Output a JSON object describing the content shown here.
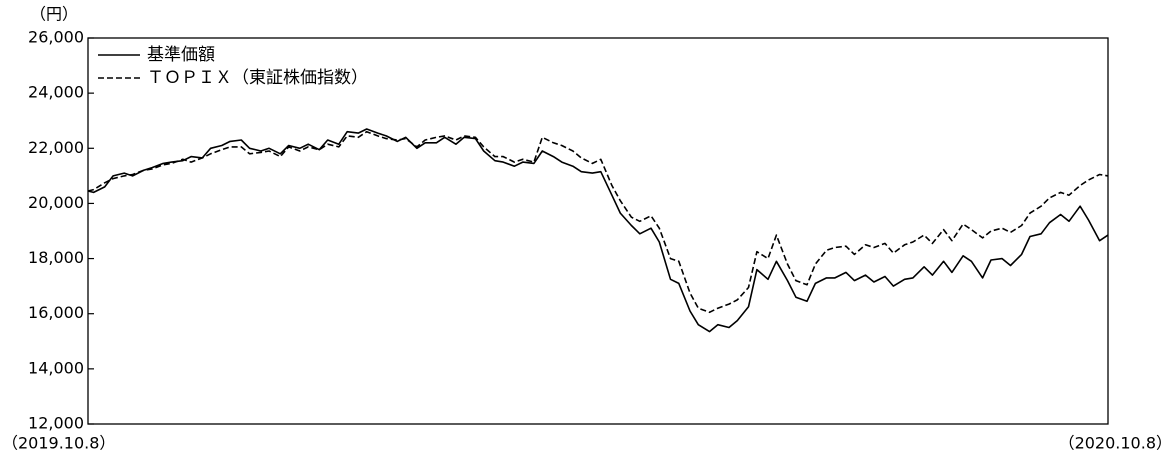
{
  "chart_data": {
    "type": "line",
    "y_unit": "（円）",
    "x_start_label": "（2019.10.8）",
    "x_end_label": "（2020.10.8）",
    "ylim": [
      12000,
      26000
    ],
    "y_ticks": [
      "26,000",
      "24,000",
      "22,000",
      "20,000",
      "18,000",
      "16,000",
      "14,000",
      "12,000"
    ],
    "y_tick_values": [
      26000,
      24000,
      22000,
      20000,
      18000,
      16000,
      14000,
      12000
    ],
    "grid": false,
    "legend_position": "top-left",
    "x_start": "2019-10-08",
    "x_end": "2020-10-08",
    "series": [
      {
        "name": "基準価額",
        "style": "solid",
        "color": "#000000",
        "points": [
          [
            "2019-10-08",
            20450
          ],
          [
            "2019-10-10",
            20400
          ],
          [
            "2019-10-14",
            20600
          ],
          [
            "2019-10-17",
            21000
          ],
          [
            "2019-10-21",
            21100
          ],
          [
            "2019-10-24",
            21000
          ],
          [
            "2019-10-28",
            21200
          ],
          [
            "2019-10-31",
            21300
          ],
          [
            "2019-11-04",
            21450
          ],
          [
            "2019-11-07",
            21500
          ],
          [
            "2019-11-11",
            21550
          ],
          [
            "2019-11-14",
            21700
          ],
          [
            "2019-11-18",
            21650
          ],
          [
            "2019-11-21",
            22000
          ],
          [
            "2019-11-25",
            22100
          ],
          [
            "2019-11-28",
            22250
          ],
          [
            "2019-12-02",
            22300
          ],
          [
            "2019-12-05",
            22000
          ],
          [
            "2019-12-09",
            21900
          ],
          [
            "2019-12-12",
            22000
          ],
          [
            "2019-12-16",
            21800
          ],
          [
            "2019-12-19",
            22100
          ],
          [
            "2019-12-23",
            22000
          ],
          [
            "2019-12-26",
            22150
          ],
          [
            "2019-12-30",
            21950
          ],
          [
            "2020-01-02",
            22300
          ],
          [
            "2020-01-06",
            22150
          ],
          [
            "2020-01-09",
            22600
          ],
          [
            "2020-01-13",
            22550
          ],
          [
            "2020-01-16",
            22700
          ],
          [
            "2020-01-20",
            22550
          ],
          [
            "2020-01-23",
            22450
          ],
          [
            "2020-01-27",
            22250
          ],
          [
            "2020-01-30",
            22400
          ],
          [
            "2020-02-03",
            22000
          ],
          [
            "2020-02-06",
            22200
          ],
          [
            "2020-02-10",
            22200
          ],
          [
            "2020-02-13",
            22400
          ],
          [
            "2020-02-17",
            22150
          ],
          [
            "2020-02-20",
            22400
          ],
          [
            "2020-02-24",
            22350
          ],
          [
            "2020-02-27",
            21900
          ],
          [
            "2020-03-02",
            21550
          ],
          [
            "2020-03-05",
            21500
          ],
          [
            "2020-03-09",
            21350
          ],
          [
            "2020-03-12",
            21500
          ],
          [
            "2020-03-16",
            21450
          ],
          [
            "2020-03-19",
            21900
          ],
          [
            "2020-03-23",
            21700
          ],
          [
            "2020-03-26",
            21500
          ],
          [
            "2020-03-30",
            21350
          ],
          [
            "2020-04-02",
            21150
          ],
          [
            "2020-04-06",
            21100
          ],
          [
            "2020-04-09",
            21150
          ],
          [
            "2020-04-13",
            20300
          ],
          [
            "2020-04-16",
            19650
          ],
          [
            "2020-04-20",
            19200
          ],
          [
            "2020-04-23",
            18900
          ],
          [
            "2020-04-27",
            19100
          ],
          [
            "2020-04-30",
            18600
          ],
          [
            "2020-05-04",
            17250
          ],
          [
            "2020-05-07",
            17100
          ],
          [
            "2020-05-11",
            16100
          ],
          [
            "2020-05-14",
            15600
          ],
          [
            "2020-05-18",
            15350
          ],
          [
            "2020-05-21",
            15600
          ],
          [
            "2020-05-25",
            15500
          ],
          [
            "2020-05-28",
            15750
          ],
          [
            "2020-06-01",
            16250
          ],
          [
            "2020-06-04",
            17600
          ],
          [
            "2020-06-08",
            17250
          ],
          [
            "2020-06-11",
            17900
          ],
          [
            "2020-06-15",
            17200
          ],
          [
            "2020-06-18",
            16600
          ],
          [
            "2020-06-22",
            16450
          ],
          [
            "2020-06-25",
            17100
          ],
          [
            "2020-06-29",
            17300
          ],
          [
            "2020-07-02",
            17300
          ],
          [
            "2020-07-06",
            17500
          ],
          [
            "2020-07-09",
            17200
          ],
          [
            "2020-07-13",
            17400
          ],
          [
            "2020-07-16",
            17150
          ],
          [
            "2020-07-20",
            17350
          ],
          [
            "2020-07-23",
            17000
          ],
          [
            "2020-07-27",
            17250
          ],
          [
            "2020-07-30",
            17300
          ],
          [
            "2020-08-03",
            17700
          ],
          [
            "2020-08-06",
            17400
          ],
          [
            "2020-08-10",
            17900
          ],
          [
            "2020-08-13",
            17500
          ],
          [
            "2020-08-17",
            18100
          ],
          [
            "2020-08-20",
            17900
          ],
          [
            "2020-08-24",
            17300
          ],
          [
            "2020-08-27",
            17950
          ],
          [
            "2020-08-31",
            18000
          ],
          [
            "2020-09-03",
            17750
          ],
          [
            "2020-09-07",
            18150
          ],
          [
            "2020-09-10",
            18800
          ],
          [
            "2020-09-14",
            18900
          ],
          [
            "2020-09-17",
            19300
          ],
          [
            "2020-09-21",
            19600
          ],
          [
            "2020-09-24",
            19350
          ],
          [
            "2020-09-28",
            19900
          ],
          [
            "2020-10-01",
            19400
          ],
          [
            "2020-10-05",
            18650
          ],
          [
            "2020-10-08",
            18850
          ]
        ]
      },
      {
        "name": "ＴＯＰＩＸ（東証株価指数）",
        "style": "dashed",
        "color": "#000000",
        "points": [
          [
            "2019-10-08",
            20450
          ],
          [
            "2019-10-10",
            20500
          ],
          [
            "2019-10-14",
            20750
          ],
          [
            "2019-10-17",
            20900
          ],
          [
            "2019-10-21",
            21000
          ],
          [
            "2019-10-24",
            21050
          ],
          [
            "2019-10-28",
            21200
          ],
          [
            "2019-10-31",
            21250
          ],
          [
            "2019-11-04",
            21400
          ],
          [
            "2019-11-07",
            21450
          ],
          [
            "2019-11-11",
            21600
          ],
          [
            "2019-11-14",
            21500
          ],
          [
            "2019-11-18",
            21650
          ],
          [
            "2019-11-21",
            21800
          ],
          [
            "2019-11-25",
            21950
          ],
          [
            "2019-11-28",
            22050
          ],
          [
            "2019-12-02",
            22050
          ],
          [
            "2019-12-05",
            21800
          ],
          [
            "2019-12-09",
            21850
          ],
          [
            "2019-12-12",
            21900
          ],
          [
            "2019-12-16",
            21700
          ],
          [
            "2019-12-19",
            22050
          ],
          [
            "2019-12-23",
            21900
          ],
          [
            "2019-12-26",
            22050
          ],
          [
            "2019-12-30",
            21950
          ],
          [
            "2020-01-02",
            22150
          ],
          [
            "2020-01-06",
            22050
          ],
          [
            "2020-01-09",
            22450
          ],
          [
            "2020-01-13",
            22400
          ],
          [
            "2020-01-16",
            22600
          ],
          [
            "2020-01-20",
            22450
          ],
          [
            "2020-01-23",
            22350
          ],
          [
            "2020-01-27",
            22300
          ],
          [
            "2020-01-30",
            22350
          ],
          [
            "2020-02-03",
            22050
          ],
          [
            "2020-02-06",
            22300
          ],
          [
            "2020-02-10",
            22400
          ],
          [
            "2020-02-13",
            22450
          ],
          [
            "2020-02-17",
            22300
          ],
          [
            "2020-02-20",
            22450
          ],
          [
            "2020-02-24",
            22400
          ],
          [
            "2020-02-27",
            22050
          ],
          [
            "2020-03-02",
            21700
          ],
          [
            "2020-03-05",
            21700
          ],
          [
            "2020-03-09",
            21500
          ],
          [
            "2020-03-12",
            21600
          ],
          [
            "2020-03-16",
            21500
          ],
          [
            "2020-03-19",
            22400
          ],
          [
            "2020-03-23",
            22200
          ],
          [
            "2020-03-26",
            22100
          ],
          [
            "2020-03-30",
            21900
          ],
          [
            "2020-04-02",
            21650
          ],
          [
            "2020-04-06",
            21450
          ],
          [
            "2020-04-09",
            21600
          ],
          [
            "2020-04-13",
            20650
          ],
          [
            "2020-04-16",
            20100
          ],
          [
            "2020-04-20",
            19500
          ],
          [
            "2020-04-23",
            19350
          ],
          [
            "2020-04-27",
            19550
          ],
          [
            "2020-04-30",
            19100
          ],
          [
            "2020-05-04",
            18000
          ],
          [
            "2020-05-07",
            17900
          ],
          [
            "2020-05-11",
            16750
          ],
          [
            "2020-05-14",
            16200
          ],
          [
            "2020-05-18",
            16050
          ],
          [
            "2020-05-21",
            16200
          ],
          [
            "2020-05-25",
            16350
          ],
          [
            "2020-05-28",
            16500
          ],
          [
            "2020-06-01",
            16950
          ],
          [
            "2020-06-04",
            18250
          ],
          [
            "2020-06-08",
            18000
          ],
          [
            "2020-06-11",
            18850
          ],
          [
            "2020-06-15",
            17800
          ],
          [
            "2020-06-18",
            17200
          ],
          [
            "2020-06-22",
            17050
          ],
          [
            "2020-06-25",
            17800
          ],
          [
            "2020-06-29",
            18300
          ],
          [
            "2020-07-02",
            18400
          ],
          [
            "2020-07-06",
            18450
          ],
          [
            "2020-07-09",
            18150
          ],
          [
            "2020-07-13",
            18500
          ],
          [
            "2020-07-16",
            18400
          ],
          [
            "2020-07-20",
            18550
          ],
          [
            "2020-07-23",
            18200
          ],
          [
            "2020-07-27",
            18500
          ],
          [
            "2020-07-30",
            18600
          ],
          [
            "2020-08-03",
            18850
          ],
          [
            "2020-08-06",
            18550
          ],
          [
            "2020-08-10",
            19050
          ],
          [
            "2020-08-13",
            18650
          ],
          [
            "2020-08-17",
            19250
          ],
          [
            "2020-08-20",
            19050
          ],
          [
            "2020-08-24",
            18750
          ],
          [
            "2020-08-27",
            19000
          ],
          [
            "2020-08-31",
            19100
          ],
          [
            "2020-09-03",
            18950
          ],
          [
            "2020-09-07",
            19200
          ],
          [
            "2020-09-10",
            19650
          ],
          [
            "2020-09-14",
            19900
          ],
          [
            "2020-09-17",
            20200
          ],
          [
            "2020-09-21",
            20400
          ],
          [
            "2020-09-24",
            20300
          ],
          [
            "2020-09-28",
            20650
          ],
          [
            "2020-10-01",
            20850
          ],
          [
            "2020-10-05",
            21050
          ],
          [
            "2020-10-08",
            21000
          ]
        ]
      }
    ]
  }
}
